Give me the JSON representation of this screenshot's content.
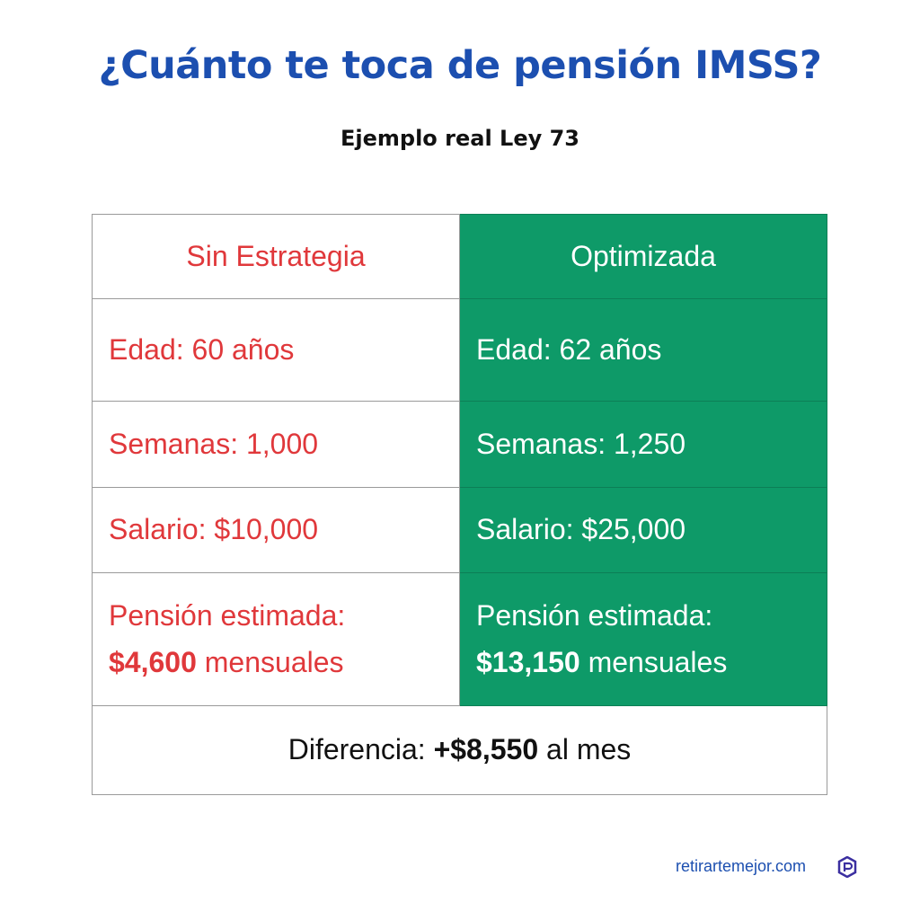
{
  "header": {
    "title": "¿Cuánto te toca de pensión IMSS?",
    "subtitle": "Ejemplo real Ley 73"
  },
  "table": {
    "columns": [
      "Sin Estrategia",
      "Optimizada"
    ],
    "rows": [
      [
        "Edad: 60 años",
        "Edad: 62 años"
      ],
      [
        "Semanas: 1,000",
        "Semanas: 1,250"
      ],
      [
        "Salario: $10,000",
        "Salario: $25,000"
      ]
    ],
    "pension": [
      {
        "label": "Pensión estimada:",
        "amount": "$4,600",
        "unit": "mensuales"
      },
      {
        "label": "Pensión estimada:",
        "amount": "$13,150",
        "unit": "mensuales"
      }
    ],
    "difference": {
      "label": "Diferencia:",
      "amount": "+$8,550",
      "unit": "al mes"
    }
  },
  "footer": {
    "site": "retirartemejor.com"
  }
}
